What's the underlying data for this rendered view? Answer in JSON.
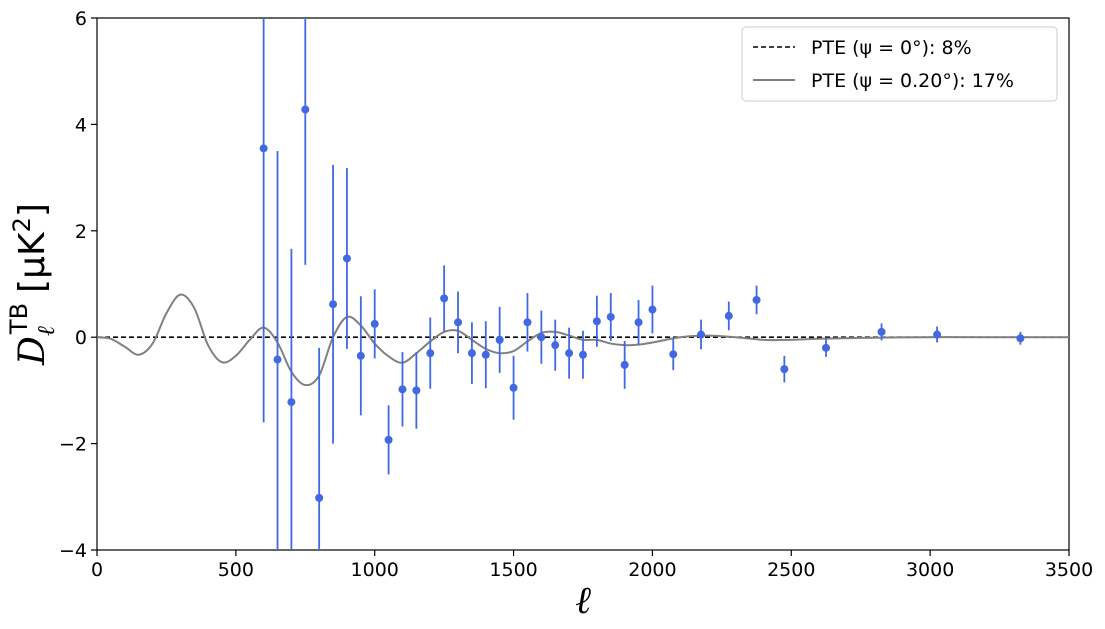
{
  "chart_data": {
    "type": "scatter",
    "title": "",
    "xlabel": "ℓ",
    "ylabel": "D_ℓ^TB [μK²]",
    "ylabel_parts": {
      "main": "D",
      "sub": "ℓ",
      "sup": "TB",
      "unit": "[μK",
      "unit_sup": "2",
      "unit_close": "]"
    },
    "xlim": [
      0,
      3500
    ],
    "ylim": [
      -4,
      6
    ],
    "xticks": [
      0,
      500,
      1000,
      1500,
      2000,
      2500,
      3000,
      3500
    ],
    "yticks": [
      -4,
      -2,
      0,
      2,
      4,
      6
    ],
    "xtick_labels": [
      "0",
      "500",
      "1000",
      "1500",
      "2000",
      "2500",
      "3000",
      "3500"
    ],
    "ytick_labels": [
      "−4",
      "−2",
      "0",
      "2",
      "4",
      "6"
    ],
    "grid": false,
    "legend_position": "top-right",
    "colors": {
      "points": "#4169e1",
      "rotated": "#808080",
      "zero": "#000000"
    },
    "series": [
      {
        "name": "",
        "kind": "errorbar",
        "points": [
          {
            "x": 600,
            "y": 3.55,
            "err": 5.15
          },
          {
            "x": 650,
            "y": -0.42,
            "err": 3.92
          },
          {
            "x": 700,
            "y": -1.22,
            "err": 2.88
          },
          {
            "x": 750,
            "y": 4.28,
            "err": 2.92
          },
          {
            "x": 800,
            "y": -3.02,
            "err": 2.82
          },
          {
            "x": 850,
            "y": 0.62,
            "err": 2.62
          },
          {
            "x": 900,
            "y": 1.48,
            "err": 1.7
          },
          {
            "x": 950,
            "y": -0.35,
            "err": 1.12
          },
          {
            "x": 1000,
            "y": 0.25,
            "err": 0.65
          },
          {
            "x": 1050,
            "y": -1.93,
            "err": 0.65
          },
          {
            "x": 1100,
            "y": -0.98,
            "err": 0.7
          },
          {
            "x": 1150,
            "y": -1.0,
            "err": 0.72
          },
          {
            "x": 1200,
            "y": -0.3,
            "err": 0.67
          },
          {
            "x": 1250,
            "y": 0.73,
            "err": 0.62
          },
          {
            "x": 1300,
            "y": 0.28,
            "err": 0.58
          },
          {
            "x": 1350,
            "y": -0.3,
            "err": 0.58
          },
          {
            "x": 1400,
            "y": -0.33,
            "err": 0.63
          },
          {
            "x": 1450,
            "y": -0.05,
            "err": 0.62
          },
          {
            "x": 1500,
            "y": -0.95,
            "err": 0.6
          },
          {
            "x": 1550,
            "y": 0.28,
            "err": 0.55
          },
          {
            "x": 1600,
            "y": 0.0,
            "err": 0.5
          },
          {
            "x": 1650,
            "y": -0.15,
            "err": 0.48
          },
          {
            "x": 1700,
            "y": -0.3,
            "err": 0.48
          },
          {
            "x": 1750,
            "y": -0.33,
            "err": 0.45
          },
          {
            "x": 1800,
            "y": 0.3,
            "err": 0.48
          },
          {
            "x": 1850,
            "y": 0.38,
            "err": 0.45
          },
          {
            "x": 1900,
            "y": -0.52,
            "err": 0.45
          },
          {
            "x": 1950,
            "y": 0.28,
            "err": 0.42
          },
          {
            "x": 2000,
            "y": 0.52,
            "err": 0.45
          },
          {
            "x": 2075,
            "y": -0.32,
            "err": 0.3
          },
          {
            "x": 2175,
            "y": 0.05,
            "err": 0.28
          },
          {
            "x": 2275,
            "y": 0.4,
            "err": 0.27
          },
          {
            "x": 2375,
            "y": 0.7,
            "err": 0.27
          },
          {
            "x": 2475,
            "y": -0.6,
            "err": 0.25
          },
          {
            "x": 2625,
            "y": -0.2,
            "err": 0.17
          },
          {
            "x": 2825,
            "y": 0.1,
            "err": 0.16
          },
          {
            "x": 3025,
            "y": 0.05,
            "err": 0.15
          },
          {
            "x": 3325,
            "y": -0.02,
            "err": 0.12
          }
        ]
      },
      {
        "name": "PTE (ψ = 0°):  8%",
        "kind": "line",
        "style": "dashed",
        "x": [
          0,
          3500
        ],
        "y": [
          0,
          0
        ]
      },
      {
        "name": "PTE (ψ = 0.20°):  17%",
        "kind": "line",
        "style": "solid",
        "x": [
          0,
          50,
          100,
          150,
          200,
          250,
          300,
          350,
          400,
          450,
          500,
          550,
          600,
          650,
          700,
          750,
          800,
          850,
          900,
          950,
          1000,
          1050,
          1100,
          1150,
          1200,
          1250,
          1300,
          1350,
          1400,
          1450,
          1500,
          1550,
          1600,
          1650,
          1700,
          1750,
          1800,
          1850,
          1900,
          1950,
          2000,
          2100,
          2200,
          2300,
          2400,
          2500,
          2600,
          2800,
          3000,
          3200,
          3500
        ],
        "y": [
          0,
          -0.03,
          -0.18,
          -0.33,
          -0.12,
          0.45,
          0.8,
          0.55,
          -0.15,
          -0.47,
          -0.35,
          -0.05,
          0.18,
          -0.1,
          -0.65,
          -0.9,
          -0.72,
          0.0,
          0.38,
          0.22,
          -0.12,
          -0.36,
          -0.48,
          -0.3,
          -0.08,
          0.1,
          0.12,
          -0.05,
          -0.22,
          -0.3,
          -0.26,
          -0.08,
          0.08,
          0.1,
          0.03,
          -0.05,
          -0.05,
          -0.12,
          -0.15,
          -0.14,
          -0.1,
          0.0,
          0.03,
          0.0,
          -0.05,
          -0.05,
          -0.03,
          -0.01,
          0.0,
          0.0,
          0.0
        ]
      }
    ]
  }
}
